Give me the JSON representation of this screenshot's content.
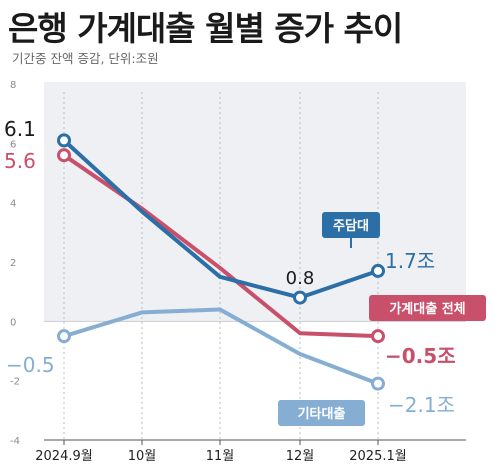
{
  "title": "은행 가계대출 월별 증가 추이",
  "subtitle": "기간중 잔액 증감, 단위:조원",
  "colors": {
    "mortgage": "#2c6ea6",
    "total": "#c9506a",
    "other": "#86aed3",
    "plot_bg": "#eef0f4"
  },
  "chart_data": {
    "type": "line",
    "categories": [
      "2024.9월",
      "10월",
      "11월",
      "12월",
      "2025.1월"
    ],
    "ylim": [
      -4,
      8
    ],
    "yticks": [
      -4,
      -2,
      0,
      2,
      4,
      6,
      8
    ],
    "grid": false,
    "series": [
      {
        "name": "주담대",
        "key": "mortgage",
        "values": [
          6.1,
          3.7,
          1.5,
          0.8,
          1.7
        ]
      },
      {
        "name": "가계대출 전체",
        "key": "total",
        "values": [
          5.6,
          3.8,
          1.8,
          -0.4,
          -0.5
        ]
      },
      {
        "name": "기타대출",
        "key": "other",
        "values": [
          -0.5,
          0.3,
          0.4,
          -1.1,
          -2.1
        ]
      }
    ],
    "annotations": {
      "mortgage_start": "6.1",
      "total_start": "5.6",
      "other_start": "−0.5",
      "mortgage_dec": "0.8",
      "mortgage_end": "1.7조",
      "total_end": "−0.5조",
      "other_end": "−2.1조"
    }
  }
}
